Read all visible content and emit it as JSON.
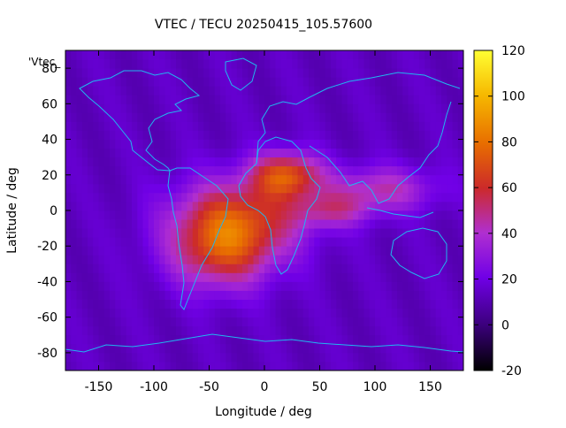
{
  "chart_data": {
    "type": "heatmap",
    "title": "VTEC / TECU 20250415_105.57600",
    "xlabel": "Longitude / deg",
    "ylabel": "Latitude / deg",
    "xlim": [
      -180,
      180
    ],
    "ylim": [
      -90,
      90
    ],
    "x_ticks": [
      -150,
      -100,
      -50,
      0,
      50,
      100,
      150
    ],
    "y_ticks": [
      -80,
      -60,
      -40,
      -20,
      0,
      20,
      40,
      60,
      80
    ],
    "legend_label": "'Vtec_",
    "colorbar": {
      "range": [
        -20,
        120
      ],
      "ticks": [
        -20,
        0,
        20,
        40,
        60,
        80,
        100,
        120
      ],
      "palette": [
        "#000000",
        "#3a007a",
        "#7000e6",
        "#b02fd0",
        "#cc2a2a",
        "#e86e00",
        "#f6b800",
        "#ffff33"
      ]
    },
    "field_model": {
      "background_value": 13,
      "cells_deg": 5,
      "blobs": [
        {
          "lon": 20,
          "lat": 20,
          "amp": 55,
          "slon": 22,
          "slat": 9
        },
        {
          "lon": -25,
          "lat": -5,
          "amp": 52,
          "slon": 40,
          "slat": 16
        },
        {
          "lon": -40,
          "lat": -25,
          "amp": 38,
          "slon": 32,
          "slat": 15
        },
        {
          "lon": 105,
          "lat": 12,
          "amp": 30,
          "slon": 35,
          "slat": 9
        },
        {
          "lon": 60,
          "lat": 0,
          "amp": 26,
          "slon": 25,
          "slat": 7
        }
      ]
    },
    "coastline_color": "#20b7f0"
  }
}
